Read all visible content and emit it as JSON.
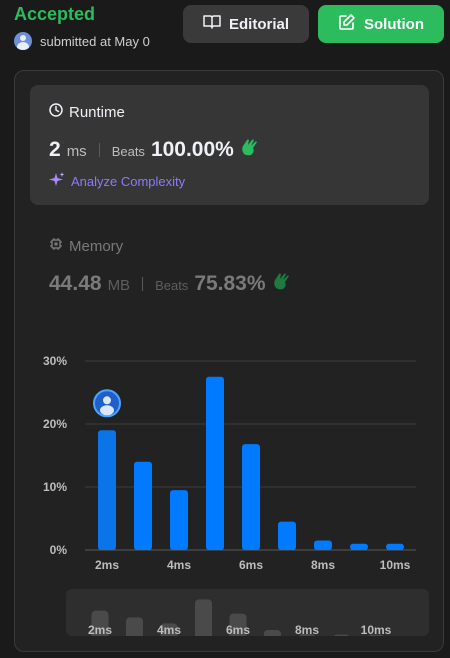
{
  "header": {
    "status": "Accepted",
    "submitted_text": "submitted at May 0",
    "editorial_label": "Editorial",
    "solution_label": "Solution"
  },
  "runtime": {
    "label": "Runtime",
    "value": "2",
    "unit": "ms",
    "beats_label": "Beats",
    "beats_pct": "100.00%",
    "analyze_label": "Analyze Complexity"
  },
  "memory": {
    "label": "Memory",
    "value": "44.48",
    "unit": "MB",
    "beats_label": "Beats",
    "beats_pct": "75.83%"
  },
  "colors": {
    "accepted": "#2cbb5d",
    "bar": "#007aff",
    "bar_highlight": "#0a74e8",
    "analyze": "#8b7cf6",
    "mini_bar": "#4a4a4a"
  },
  "chart_data": {
    "type": "bar",
    "y_ticks": [
      "30%",
      "20%",
      "10%",
      "0%"
    ],
    "x_tick_labels": [
      "2ms",
      "4ms",
      "6ms",
      "8ms",
      "10ms"
    ],
    "ylim": [
      0,
      30
    ],
    "grid": true,
    "highlighted_index": 0,
    "bars": [
      {
        "x": 2,
        "value": 19
      },
      {
        "x": 3,
        "value": 14
      },
      {
        "x": 4,
        "value": 9.5
      },
      {
        "x": 5,
        "value": 27.5
      },
      {
        "x": 6,
        "value": 16.8
      },
      {
        "x": 7,
        "value": 4.5
      },
      {
        "x": 8,
        "value": 1.5
      },
      {
        "x": 9,
        "value": 1
      },
      {
        "x": 10,
        "value": 1
      }
    ],
    "mini_tick_labels": [
      "2ms",
      "4ms",
      "6ms",
      "8ms",
      "10ms"
    ]
  }
}
